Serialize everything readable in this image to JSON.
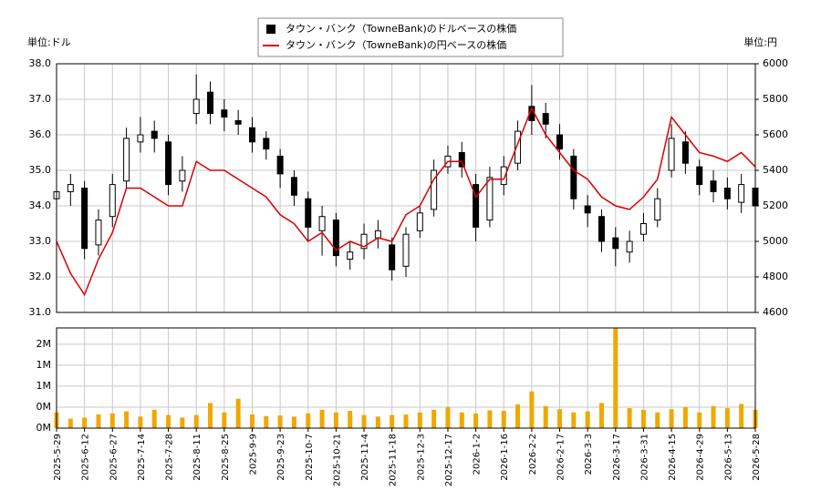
{
  "chart_data": [
    {
      "type": "candlestick",
      "y_unit": "単位:ドル",
      "y2_unit": "単位:円",
      "ylim": [
        31,
        38
      ],
      "yticks": [
        {
          "value": 31,
          "label": "31.0"
        },
        {
          "value": 32,
          "label": "32.0"
        },
        {
          "value": 33,
          "label": "33.0"
        },
        {
          "value": 34,
          "label": "34.0"
        },
        {
          "value": 35,
          "label": "35.0"
        },
        {
          "value": 36,
          "label": "36.0"
        },
        {
          "value": 37,
          "label": "37.0"
        },
        {
          "value": 38,
          "label": "38.0"
        }
      ],
      "y2lim": [
        4600,
        6000
      ],
      "y2ticks": [
        4600,
        4800,
        5000,
        5200,
        5400,
        5600,
        5800,
        6000
      ],
      "grid": true,
      "series": [
        {
          "name": "タウン・バンク（TowneBank)のドルベースの株価",
          "color": "#000000",
          "open": [
            34.2,
            34.4,
            34.5,
            32.9,
            33.7,
            34.7,
            35.8,
            36.1,
            35.8,
            34.7,
            36.6,
            37.2,
            36.7,
            36.4,
            36.2,
            35.9,
            35.4,
            34.8,
            34.2,
            33.3,
            33.6,
            32.5,
            32.8,
            33.1,
            32.9,
            32.3,
            33.3,
            33.9,
            35.1,
            35.5,
            34.6,
            33.6,
            34.6,
            35.2,
            36.8,
            36.6,
            36.0,
            35.4,
            34.0,
            33.7,
            33.1,
            32.7,
            33.2,
            33.6,
            35.0,
            35.8,
            35.1,
            34.7,
            34.5,
            34.1,
            34.5
          ],
          "high": [
            34.7,
            34.9,
            34.7,
            33.9,
            34.9,
            36.2,
            36.5,
            36.4,
            36.0,
            35.4,
            37.7,
            37.5,
            37.0,
            36.7,
            36.5,
            36.1,
            35.6,
            35.0,
            34.4,
            34.0,
            33.8,
            33.0,
            33.5,
            33.6,
            33.1,
            33.4,
            34.0,
            35.3,
            35.7,
            35.8,
            34.9,
            35.1,
            35.4,
            36.4,
            37.4,
            36.9,
            36.3,
            35.6,
            34.3,
            33.9,
            33.4,
            33.3,
            33.8,
            34.5,
            36.3,
            36.1,
            35.3,
            35.0,
            34.8,
            34.9,
            34.7
          ],
          "low": [
            33.9,
            34.0,
            32.5,
            32.6,
            33.4,
            34.5,
            35.5,
            35.5,
            34.3,
            34.4,
            36.3,
            36.3,
            36.1,
            36.0,
            35.5,
            35.3,
            34.5,
            34.0,
            33.0,
            32.6,
            32.3,
            32.2,
            32.5,
            32.8,
            31.9,
            32.0,
            33.1,
            33.7,
            34.9,
            34.8,
            33.0,
            33.4,
            34.3,
            35.0,
            36.0,
            35.9,
            35.3,
            33.9,
            33.4,
            32.7,
            32.3,
            32.4,
            33.0,
            33.4,
            34.8,
            34.9,
            34.3,
            34.1,
            33.9,
            33.8,
            33.7
          ],
          "close": [
            34.4,
            34.6,
            32.8,
            33.6,
            34.6,
            35.9,
            36.0,
            35.9,
            34.6,
            35.0,
            37.0,
            36.6,
            36.5,
            36.3,
            35.8,
            35.6,
            34.9,
            34.3,
            33.4,
            33.7,
            32.6,
            32.7,
            33.2,
            33.3,
            32.2,
            33.2,
            33.8,
            35.0,
            35.4,
            35.1,
            33.4,
            34.8,
            35.1,
            36.1,
            36.4,
            36.3,
            35.6,
            34.2,
            33.8,
            33.0,
            32.8,
            33.0,
            33.5,
            34.2,
            35.9,
            35.2,
            34.6,
            34.4,
            34.2,
            34.6,
            34.0
          ]
        },
        {
          "name": "タウン・バンク（TowneBank)の円ベースの株価",
          "color": "#dd0000",
          "axis": "y2",
          "values": [
            5000,
            4820,
            4700,
            4900,
            5050,
            5300,
            5300,
            5250,
            5200,
            5200,
            5450,
            5400,
            5400,
            5350,
            5300,
            5250,
            5150,
            5100,
            5000,
            5050,
            4950,
            5000,
            4970,
            5020,
            5000,
            5150,
            5200,
            5350,
            5450,
            5450,
            5250,
            5350,
            5350,
            5550,
            5750,
            5600,
            5500,
            5400,
            5350,
            5250,
            5200,
            5180,
            5250,
            5350,
            5700,
            5600,
            5500,
            5480,
            5450,
            5500,
            5420
          ]
        }
      ]
    },
    {
      "type": "bar",
      "color": "#f0a800",
      "categories": [
        "2025-5-29",
        null,
        "2025-6-12",
        null,
        "2025-6-27",
        null,
        "2025-7-14",
        null,
        "2025-7-28",
        null,
        "2025-8-11",
        null,
        "2025-8-25",
        null,
        "2025-9-9",
        null,
        "2025-9-23",
        null,
        "2025-10-7",
        null,
        "2025-10-21",
        null,
        "2025-11-4",
        null,
        "2025-11-18",
        null,
        "2025-12-3",
        null,
        "2025-12-17",
        null,
        "2026-1-2",
        null,
        "2026-1-16",
        null,
        "2026-2-2",
        null,
        "2026-2-17",
        null,
        "2026-3-3",
        null,
        "2026-3-17",
        null,
        "2026-3-31",
        null,
        "2026-4-15",
        null,
        "2026-4-29",
        null,
        "2026-5-13",
        null,
        "2026-5-28"
      ],
      "values": [
        300000,
        180000,
        200000,
        260000,
        280000,
        320000,
        220000,
        350000,
        250000,
        200000,
        250000,
        480000,
        300000,
        560000,
        260000,
        230000,
        240000,
        220000,
        280000,
        350000,
        300000,
        330000,
        250000,
        220000,
        250000,
        260000,
        300000,
        350000,
        400000,
        300000,
        280000,
        340000,
        330000,
        450000,
        700000,
        420000,
        360000,
        300000,
        320000,
        480000,
        1910000,
        380000,
        350000,
        300000,
        360000,
        400000,
        300000,
        420000,
        380000,
        460000,
        350000
      ],
      "ylim": [
        0,
        1910000
      ],
      "yticks": [
        {
          "value": 0,
          "label": "0M"
        },
        {
          "value": 400000,
          "label": "0M"
        },
        {
          "value": 800000,
          "label": "1M"
        },
        {
          "value": 1200000,
          "label": "1M"
        },
        {
          "value": 1600000,
          "label": "2M"
        }
      ],
      "grid": true
    }
  ]
}
